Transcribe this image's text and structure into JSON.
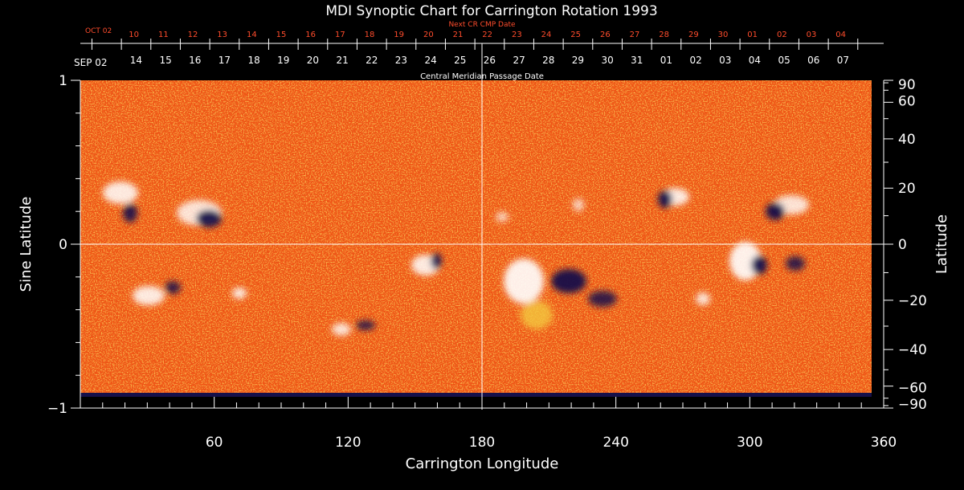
{
  "chart_data": {
    "type": "heatmap",
    "title": "MDI Synoptic Chart for Carrington Rotation 1993",
    "xlabel": "Carrington Longitude",
    "ylabel_left": "Sine Latitude",
    "ylabel_right": "Latitude",
    "xlim": [
      0,
      360
    ],
    "ylim": [
      -1,
      1
    ],
    "x_ticks": [
      "60",
      "120",
      "180",
      "240",
      "300",
      "360"
    ],
    "y_ticks_left": [
      "1",
      "0",
      "−1"
    ],
    "y_ticks_right": [
      "90",
      "60",
      "40",
      "20",
      "0",
      "−20",
      "−40",
      "−60",
      "−90"
    ],
    "y_ticks_right_values": [
      90,
      60,
      40,
      20,
      0,
      -20,
      -40,
      -60,
      -90
    ],
    "grid": "lines at longitude 180 and sine latitude 0",
    "colors": {
      "background": "#000000",
      "field": "#f05418",
      "positive_polarity": "#ffffff",
      "negative_polarity": "#15104a",
      "gridline": "#ffffff",
      "next_cr_axis": "#ff4c2c",
      "text": "#ffffff"
    },
    "cmp_axis": {
      "label": "Central Meridian Passage Date",
      "start_label": "SEP 02",
      "dates": [
        "07",
        "06",
        "05",
        "04",
        "03",
        "02",
        "01",
        "31",
        "30",
        "29",
        "28",
        "27",
        "26",
        "25",
        "24",
        "23",
        "22",
        "21",
        "20",
        "19",
        "18",
        "17",
        "16",
        "15",
        "14"
      ]
    },
    "next_cr_axis": {
      "label": "Next CR CMP Date",
      "start_label": "OCT 02",
      "dates": [
        "04",
        "03",
        "02",
        "01",
        "30",
        "29",
        "28",
        "27",
        "26",
        "25",
        "24",
        "23",
        "22",
        "21",
        "20",
        "19",
        "18",
        "17",
        "16",
        "15",
        "14",
        "13",
        "12",
        "11",
        "10"
      ]
    }
  }
}
